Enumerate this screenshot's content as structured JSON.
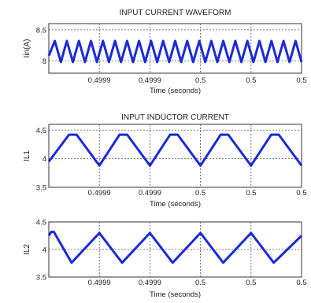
{
  "chart_data": [
    {
      "type": "line",
      "title": "INPUT CURRENT WAVEFORM",
      "xlabel": "Time (seconds)",
      "ylabel": "Iin(A)",
      "x_tick_labels": [
        "0.4999",
        "0.4999",
        "0.5",
        "0.5",
        "0.5"
      ],
      "y_ticks": [
        8,
        8.5
      ],
      "ylim": [
        7.8,
        8.6
      ],
      "grid": true,
      "series": [
        {
          "color": "#1a2bd6",
          "x": [
            0,
            0.5,
            1,
            1.5,
            2,
            2.5,
            3,
            3.5,
            4,
            4.5,
            5,
            5.5,
            6,
            6.5,
            7,
            7.5,
            8,
            8.5,
            9,
            9.5,
            10,
            10.5,
            11,
            11.5,
            12,
            12.5,
            13,
            13.5,
            14,
            14.5,
            15,
            15.5,
            16,
            16.5,
            17,
            17.5,
            18,
            18.5,
            19,
            19.5,
            20,
            20.5,
            21
          ],
          "y": [
            8.08,
            8.32,
            7.98,
            8.32,
            7.98,
            8.32,
            7.98,
            8.32,
            7.98,
            8.32,
            7.98,
            8.32,
            7.98,
            8.32,
            7.98,
            8.32,
            7.98,
            8.32,
            7.98,
            8.32,
            7.98,
            8.32,
            7.98,
            8.32,
            7.98,
            8.32,
            7.98,
            8.32,
            7.98,
            8.32,
            7.98,
            8.32,
            7.98,
            8.32,
            7.98,
            8.32,
            7.98,
            8.32,
            7.98,
            8.32,
            7.98,
            8.32,
            7.98
          ]
        }
      ]
    },
    {
      "type": "line",
      "title": "INPUT INDUCTOR CURRENT",
      "xlabel": "Time (seconds)",
      "ylabel": "IL1",
      "x_tick_labels": [
        "0.4999",
        "0.4999",
        "0.5",
        "0.5",
        "0.5"
      ],
      "y_ticks": [
        3.5,
        4,
        4.5
      ],
      "ylim": [
        3.5,
        4.6
      ],
      "grid": true,
      "series": [
        {
          "color": "#1a2bd6",
          "x": [
            0,
            0.4,
            0.55,
            1,
            1.4,
            1.55,
            2,
            2.4,
            2.55,
            3,
            3.4,
            3.55,
            4,
            4.4,
            4.55,
            5
          ],
          "y": [
            3.95,
            4.42,
            4.42,
            3.88,
            4.42,
            4.42,
            3.88,
            4.42,
            4.42,
            3.88,
            4.42,
            4.42,
            3.88,
            4.42,
            4.42,
            3.88
          ]
        }
      ]
    },
    {
      "type": "line",
      "title": "",
      "xlabel": "Time (seconds)",
      "ylabel": "IL2",
      "x_tick_labels": [
        "0.4999",
        "0.4999",
        "0.5",
        "0.5",
        "0.5"
      ],
      "y_ticks": [
        3.5,
        4,
        4.5
      ],
      "ylim": [
        3.5,
        4.5
      ],
      "grid": true,
      "series": [
        {
          "color": "#1a2bd6",
          "x": [
            0,
            0.05,
            0.1,
            0.45,
            1,
            1.45,
            2,
            2.45,
            3,
            3.45,
            4,
            4.45,
            5
          ],
          "y": [
            4.25,
            4.32,
            4.32,
            3.76,
            4.3,
            3.76,
            4.3,
            3.76,
            4.3,
            3.76,
            4.3,
            3.76,
            4.25
          ]
        }
      ]
    }
  ]
}
